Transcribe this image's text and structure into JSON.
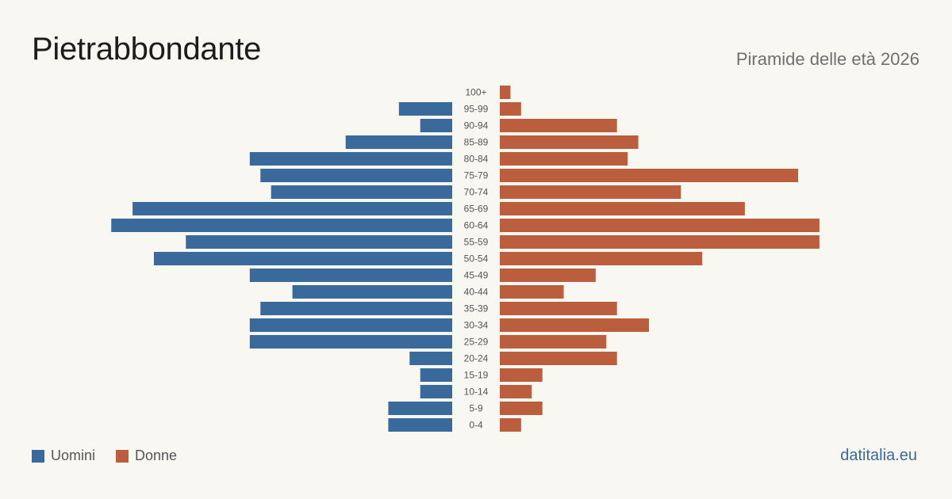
{
  "header": {
    "title": "Pietrabbondante",
    "subtitle": "Piramide delle età 2026"
  },
  "footer": {
    "brand": "datitalia.eu"
  },
  "colors": {
    "male": "#3a6a9b",
    "female": "#bb5e3e"
  },
  "chart_data": {
    "type": "bar",
    "orientation": "horizontal-pyramid",
    "title": "Pietrabbondante",
    "subtitle": "Piramide delle età 2026",
    "legend_position": "bottom-left",
    "grid": false,
    "categories": [
      "100+",
      "95-99",
      "90-94",
      "85-89",
      "80-84",
      "75-79",
      "70-74",
      "65-69",
      "60-64",
      "55-59",
      "50-54",
      "45-49",
      "40-44",
      "35-39",
      "30-34",
      "25-29",
      "20-24",
      "15-19",
      "10-14",
      "5-9",
      "0-4"
    ],
    "series": [
      {
        "name": "Uomini",
        "color": "#3a6a9b",
        "values": [
          0,
          5,
          3,
          10,
          19,
          18,
          17,
          30,
          32,
          25,
          28,
          19,
          15,
          18,
          19,
          19,
          4,
          3,
          3,
          6,
          6
        ]
      },
      {
        "name": "Donne",
        "color": "#bb5e3e",
        "values": [
          1,
          2,
          11,
          13,
          12,
          28,
          17,
          23,
          30,
          30,
          19,
          9,
          6,
          11,
          14,
          10,
          11,
          4,
          3,
          4,
          2
        ]
      }
    ]
  }
}
